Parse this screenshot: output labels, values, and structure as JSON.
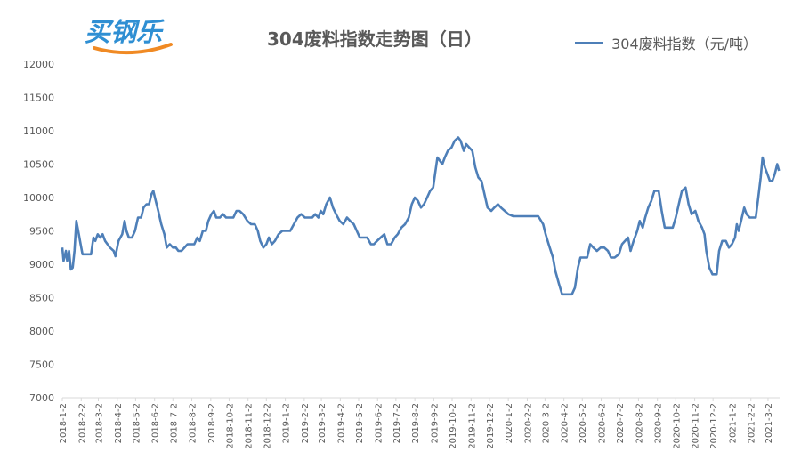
{
  "logo": {
    "text": "买钢乐"
  },
  "chart_data": {
    "type": "line",
    "title": "304废料指数走势图（日）",
    "legend_position": "top-right",
    "grid": false,
    "ylim": [
      7000,
      12000
    ],
    "y_ticks": [
      "12000",
      "11500",
      "11000",
      "10500",
      "10000",
      "9500",
      "9000",
      "8500",
      "8000",
      "7500",
      "7000"
    ],
    "x_tick_labels": [
      "2018-1-2",
      "2018-2-2",
      "2018-3-2",
      "2018-4-2",
      "2018-5-2",
      "2018-6-2",
      "2018-7-2",
      "2018-8-2",
      "2018-9-2",
      "2018-10-2",
      "2018-11-2",
      "2018-12-2",
      "2019-1-2",
      "2019-2-2",
      "2019-3-2",
      "2019-4-2",
      "2019-5-2",
      "2019-6-2",
      "2019-7-2",
      "2019-8-2",
      "2019-9-2",
      "2019-10-2",
      "2019-11-2",
      "2019-12-2",
      "2020-1-2",
      "2020-2-2",
      "2020-3-2",
      "2020-4-2",
      "2020-5-2",
      "2020-6-2",
      "2020-7-2",
      "2020-8-2",
      "2020-9-2",
      "2020-10-2",
      "2020-11-2",
      "2020-12-2",
      "2021-1-2",
      "2021-2-2",
      "2021-3-2"
    ],
    "colors": {
      "line": "#4e7fb8"
    },
    "series": [
      {
        "name": "304废料指数（元/吨）",
        "points": [
          [
            "2018-1-2",
            9250
          ],
          [
            "2018-1-4",
            9050
          ],
          [
            "2018-1-8",
            9200
          ],
          [
            "2018-1-10",
            9050
          ],
          [
            "2018-1-13",
            9200
          ],
          [
            "2018-1-16",
            8920
          ],
          [
            "2018-1-19",
            8950
          ],
          [
            "2018-1-22",
            9200
          ],
          [
            "2018-1-25",
            9650
          ],
          [
            "2018-1-28",
            9500
          ],
          [
            "2018-2-1",
            9300
          ],
          [
            "2018-2-4",
            9150
          ],
          [
            "2018-2-10",
            9150
          ],
          [
            "2018-2-18",
            9150
          ],
          [
            "2018-2-22",
            9400
          ],
          [
            "2018-2-25",
            9350
          ],
          [
            "2018-3-1",
            9450
          ],
          [
            "2018-3-5",
            9400
          ],
          [
            "2018-3-9",
            9450
          ],
          [
            "2018-3-13",
            9350
          ],
          [
            "2018-3-17",
            9300
          ],
          [
            "2018-3-21",
            9250
          ],
          [
            "2018-3-27",
            9200
          ],
          [
            "2018-3-30",
            9120
          ],
          [
            "2018-4-4",
            9350
          ],
          [
            "2018-4-10",
            9450
          ],
          [
            "2018-4-14",
            9650
          ],
          [
            "2018-4-17",
            9500
          ],
          [
            "2018-4-21",
            9400
          ],
          [
            "2018-4-26",
            9400
          ],
          [
            "2018-5-1",
            9500
          ],
          [
            "2018-5-6",
            9700
          ],
          [
            "2018-5-11",
            9700
          ],
          [
            "2018-5-15",
            9850
          ],
          [
            "2018-5-20",
            9900
          ],
          [
            "2018-5-24",
            9900
          ],
          [
            "2018-5-28",
            10050
          ],
          [
            "2018-5-31",
            10100
          ],
          [
            "2018-6-4",
            9950
          ],
          [
            "2018-6-8",
            9800
          ],
          [
            "2018-6-13",
            9600
          ],
          [
            "2018-6-18",
            9450
          ],
          [
            "2018-6-22",
            9250
          ],
          [
            "2018-6-27",
            9300
          ],
          [
            "2018-7-2",
            9250
          ],
          [
            "2018-7-7",
            9250
          ],
          [
            "2018-7-11",
            9200
          ],
          [
            "2018-7-16",
            9200
          ],
          [
            "2018-7-21",
            9250
          ],
          [
            "2018-7-26",
            9300
          ],
          [
            "2018-8-1",
            9300
          ],
          [
            "2018-8-6",
            9300
          ],
          [
            "2018-8-11",
            9400
          ],
          [
            "2018-8-15",
            9350
          ],
          [
            "2018-8-20",
            9500
          ],
          [
            "2018-8-25",
            9500
          ],
          [
            "2018-8-29",
            9650
          ],
          [
            "2018-9-3",
            9750
          ],
          [
            "2018-9-7",
            9800
          ],
          [
            "2018-9-11",
            9700
          ],
          [
            "2018-9-17",
            9700
          ],
          [
            "2018-9-22",
            9750
          ],
          [
            "2018-9-27",
            9700
          ],
          [
            "2018-10-3",
            9700
          ],
          [
            "2018-10-9",
            9700
          ],
          [
            "2018-10-14",
            9800
          ],
          [
            "2018-10-19",
            9800
          ],
          [
            "2018-10-25",
            9750
          ],
          [
            "2018-11-1",
            9650
          ],
          [
            "2018-11-7",
            9600
          ],
          [
            "2018-11-13",
            9600
          ],
          [
            "2018-11-18",
            9500
          ],
          [
            "2018-11-22",
            9350
          ],
          [
            "2018-11-27",
            9250
          ],
          [
            "2018-12-2",
            9300
          ],
          [
            "2018-12-6",
            9400
          ],
          [
            "2018-12-11",
            9300
          ],
          [
            "2018-12-16",
            9350
          ],
          [
            "2018-12-22",
            9450
          ],
          [
            "2018-12-28",
            9500
          ],
          [
            "2019-1-4",
            9500
          ],
          [
            "2019-1-10",
            9500
          ],
          [
            "2019-1-16",
            9600
          ],
          [
            "2019-1-22",
            9700
          ],
          [
            "2019-1-28",
            9750
          ],
          [
            "2019-2-3",
            9700
          ],
          [
            "2019-2-9",
            9700
          ],
          [
            "2019-2-15",
            9700
          ],
          [
            "2019-2-20",
            9750
          ],
          [
            "2019-2-25",
            9700
          ],
          [
            "2019-3-1",
            9800
          ],
          [
            "2019-3-5",
            9750
          ],
          [
            "2019-3-10",
            9900
          ],
          [
            "2019-3-16",
            10000
          ],
          [
            "2019-3-21",
            9850
          ],
          [
            "2019-3-26",
            9750
          ],
          [
            "2019-4-1",
            9650
          ],
          [
            "2019-4-7",
            9600
          ],
          [
            "2019-4-13",
            9700
          ],
          [
            "2019-4-18",
            9650
          ],
          [
            "2019-4-24",
            9600
          ],
          [
            "2019-4-29",
            9500
          ],
          [
            "2019-5-4",
            9400
          ],
          [
            "2019-5-10",
            9400
          ],
          [
            "2019-5-16",
            9400
          ],
          [
            "2019-5-22",
            9300
          ],
          [
            "2019-5-27",
            9300
          ],
          [
            "2019-6-1",
            9350
          ],
          [
            "2019-6-7",
            9400
          ],
          [
            "2019-6-13",
            9450
          ],
          [
            "2019-6-18",
            9300
          ],
          [
            "2019-6-24",
            9300
          ],
          [
            "2019-6-30",
            9400
          ],
          [
            "2019-7-5",
            9450
          ],
          [
            "2019-7-11",
            9550
          ],
          [
            "2019-7-17",
            9600
          ],
          [
            "2019-7-23",
            9700
          ],
          [
            "2019-7-28",
            9900
          ],
          [
            "2019-8-2",
            10000
          ],
          [
            "2019-8-7",
            9950
          ],
          [
            "2019-8-12",
            9850
          ],
          [
            "2019-8-17",
            9900
          ],
          [
            "2019-8-22",
            10000
          ],
          [
            "2019-8-27",
            10100
          ],
          [
            "2019-9-1",
            10150
          ],
          [
            "2019-9-4",
            10350
          ],
          [
            "2019-9-8",
            10600
          ],
          [
            "2019-9-12",
            10550
          ],
          [
            "2019-9-16",
            10500
          ],
          [
            "2019-9-20",
            10600
          ],
          [
            "2019-9-25",
            10700
          ],
          [
            "2019-10-1",
            10750
          ],
          [
            "2019-10-6",
            10850
          ],
          [
            "2019-10-12",
            10900
          ],
          [
            "2019-10-16",
            10850
          ],
          [
            "2019-10-21",
            10700
          ],
          [
            "2019-10-25",
            10800
          ],
          [
            "2019-10-30",
            10750
          ],
          [
            "2019-11-4",
            10700
          ],
          [
            "2019-11-9",
            10450
          ],
          [
            "2019-11-14",
            10300
          ],
          [
            "2019-11-19",
            10250
          ],
          [
            "2019-11-24",
            10050
          ],
          [
            "2019-11-29",
            9850
          ],
          [
            "2019-12-5",
            9800
          ],
          [
            "2019-12-10",
            9850
          ],
          [
            "2019-12-16",
            9900
          ],
          [
            "2019-12-21",
            9850
          ],
          [
            "2019-12-27",
            9800
          ],
          [
            "2020-1-2",
            9750
          ],
          [
            "2020-1-10",
            9720
          ],
          [
            "2020-1-20",
            9720
          ],
          [
            "2020-1-30",
            9720
          ],
          [
            "2020-2-10",
            9720
          ],
          [
            "2020-2-20",
            9720
          ],
          [
            "2020-2-28",
            9600
          ],
          [
            "2020-3-3",
            9450
          ],
          [
            "2020-3-8",
            9300
          ],
          [
            "2020-3-15",
            9100
          ],
          [
            "2020-3-19",
            8900
          ],
          [
            "2020-3-25",
            8700
          ],
          [
            "2020-3-30",
            8550
          ],
          [
            "2020-4-5",
            8550
          ],
          [
            "2020-4-15",
            8550
          ],
          [
            "2020-4-20",
            8650
          ],
          [
            "2020-4-25",
            8950
          ],
          [
            "2020-4-29",
            9100
          ],
          [
            "2020-5-4",
            9100
          ],
          [
            "2020-5-10",
            9100
          ],
          [
            "2020-5-15",
            9300
          ],
          [
            "2020-5-20",
            9250
          ],
          [
            "2020-5-26",
            9200
          ],
          [
            "2020-6-1",
            9250
          ],
          [
            "2020-6-7",
            9250
          ],
          [
            "2020-6-13",
            9200
          ],
          [
            "2020-6-18",
            9100
          ],
          [
            "2020-6-24",
            9100
          ],
          [
            "2020-7-1",
            9150
          ],
          [
            "2020-7-6",
            9300
          ],
          [
            "2020-7-11",
            9350
          ],
          [
            "2020-7-16",
            9400
          ],
          [
            "2020-7-20",
            9200
          ],
          [
            "2020-7-25",
            9350
          ],
          [
            "2020-7-31",
            9500
          ],
          [
            "2020-8-4",
            9650
          ],
          [
            "2020-8-9",
            9550
          ],
          [
            "2020-8-13",
            9700
          ],
          [
            "2020-8-18",
            9850
          ],
          [
            "2020-8-23",
            9950
          ],
          [
            "2020-8-28",
            10100
          ],
          [
            "2020-9-4",
            10100
          ],
          [
            "2020-9-9",
            9800
          ],
          [
            "2020-9-14",
            9550
          ],
          [
            "2020-9-20",
            9550
          ],
          [
            "2020-9-27",
            9550
          ],
          [
            "2020-10-2",
            9700
          ],
          [
            "2020-10-7",
            9900
          ],
          [
            "2020-10-12",
            10100
          ],
          [
            "2020-10-18",
            10150
          ],
          [
            "2020-10-23",
            9900
          ],
          [
            "2020-10-28",
            9750
          ],
          [
            "2020-11-3",
            9800
          ],
          [
            "2020-11-8",
            9650
          ],
          [
            "2020-11-14",
            9550
          ],
          [
            "2020-11-18",
            9450
          ],
          [
            "2020-11-21",
            9200
          ],
          [
            "2020-11-26",
            8950
          ],
          [
            "2020-12-1",
            8850
          ],
          [
            "2020-12-8",
            8850
          ],
          [
            "2020-12-12",
            9200
          ],
          [
            "2020-12-17",
            9350
          ],
          [
            "2020-12-23",
            9350
          ],
          [
            "2020-12-28",
            9250
          ],
          [
            "2021-1-2",
            9300
          ],
          [
            "2021-1-7",
            9400
          ],
          [
            "2021-1-10",
            9600
          ],
          [
            "2021-1-13",
            9500
          ],
          [
            "2021-1-17",
            9650
          ],
          [
            "2021-1-22",
            9850
          ],
          [
            "2021-1-26",
            9750
          ],
          [
            "2021-1-31",
            9700
          ],
          [
            "2021-2-5",
            9700
          ],
          [
            "2021-2-10",
            9700
          ],
          [
            "2021-2-14",
            10000
          ],
          [
            "2021-2-18",
            10300
          ],
          [
            "2021-2-21",
            10600
          ],
          [
            "2021-2-25",
            10450
          ],
          [
            "2021-3-1",
            10350
          ],
          [
            "2021-3-5",
            10250
          ],
          [
            "2021-3-9",
            10250
          ],
          [
            "2021-3-13",
            10350
          ],
          [
            "2021-3-17",
            10500
          ],
          [
            "2021-3-20",
            10400
          ]
        ]
      }
    ]
  }
}
